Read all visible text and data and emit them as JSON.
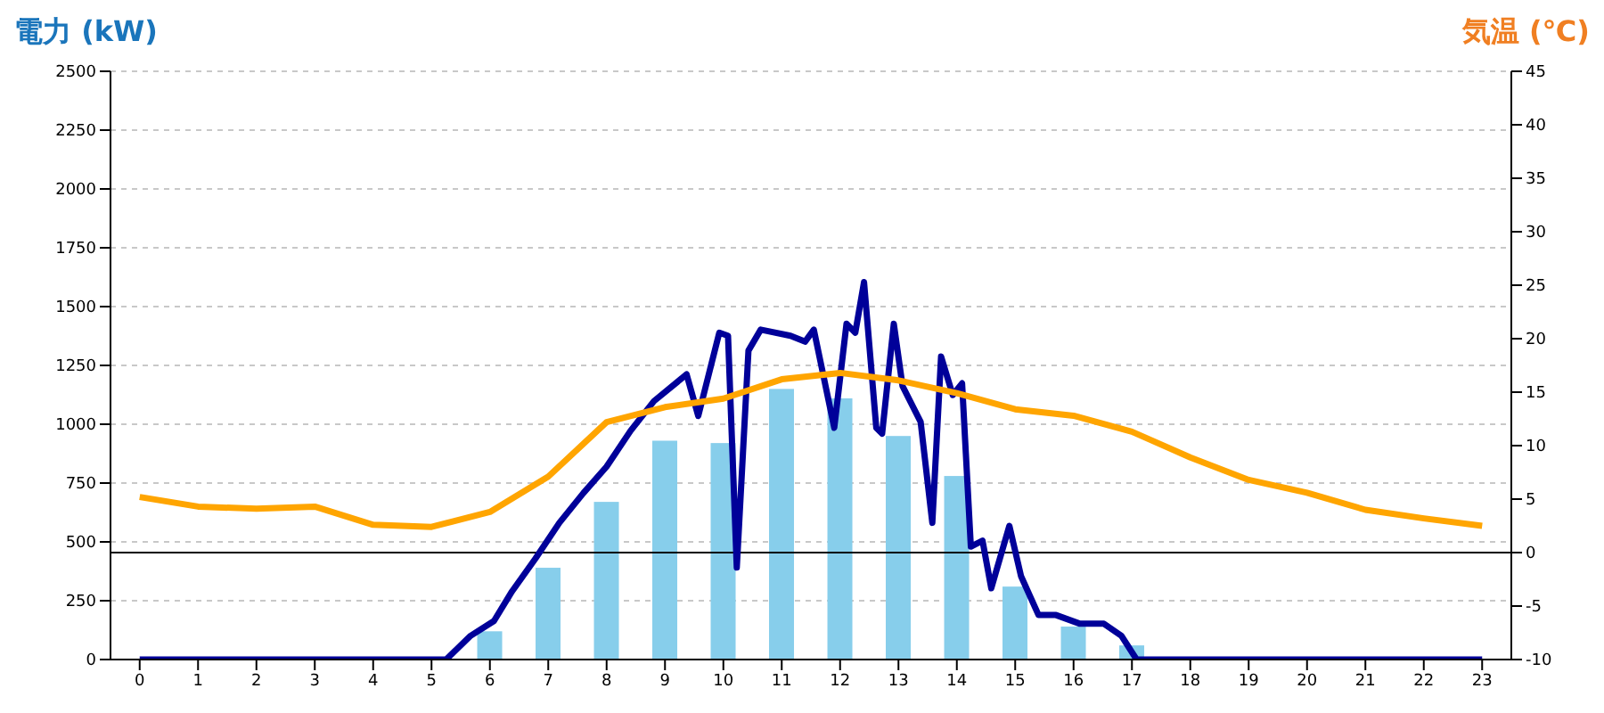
{
  "chart_data": {
    "type": "bar",
    "ylabel": "電力 (kW)",
    "y2label": "気温 (℃)",
    "xlim": [
      -0.5,
      23.5
    ],
    "xticks": [
      0,
      1,
      2,
      3,
      4,
      5,
      6,
      7,
      8,
      9,
      10,
      11,
      12,
      13,
      14,
      15,
      16,
      17,
      18,
      19,
      20,
      21,
      22,
      23
    ],
    "ylim": [
      0,
      2500
    ],
    "yticks": [
      0,
      250,
      500,
      750,
      1000,
      1250,
      1500,
      1750,
      2000,
      2250,
      2500
    ],
    "y2lim": [
      -10,
      45
    ],
    "y2ticks": [
      -10,
      -5,
      0,
      5,
      10,
      15,
      20,
      25,
      30,
      35,
      40,
      45
    ],
    "grid": "y",
    "legend": false,
    "ref_lines": [
      {
        "axis": "y2",
        "value": 0,
        "color": "#000000"
      }
    ],
    "series": [
      {
        "color": "#87ceeb",
        "x": [
          0,
          1,
          2,
          3,
          4,
          5,
          6,
          7,
          8,
          9,
          10,
          11,
          12,
          13,
          14,
          15,
          16,
          17,
          18,
          19,
          20,
          21,
          22,
          23
        ],
        "values": [
          0,
          0,
          0,
          0,
          0,
          0,
          120,
          390,
          670,
          930,
          920,
          1150,
          1110,
          950,
          780,
          310,
          140,
          60,
          0,
          0,
          0,
          0,
          0,
          0
        ]
      },
      {
        "type": "line",
        "color": "#000099",
        "x": [
          0,
          5.25,
          5.67,
          6.07,
          6.38,
          6.78,
          7.19,
          7.6,
          8.0,
          8.41,
          8.81,
          9.37,
          9.57,
          9.93,
          10.08,
          10.23,
          10.43,
          10.64,
          11.15,
          11.4,
          11.55,
          11.9,
          12.11,
          12.26,
          12.41,
          12.62,
          12.72,
          12.92,
          13.07,
          13.38,
          13.58,
          13.73,
          13.93,
          14.09,
          14.24,
          14.44,
          14.59,
          14.9,
          15.1,
          15.4,
          15.7,
          16.11,
          16.52,
          16.82,
          17.08,
          23
        ],
        "values": [
          0,
          0,
          101,
          164,
          290,
          429,
          581,
          707,
          820,
          972,
          1098,
          1212,
          1035,
          1389,
          1376,
          391,
          1313,
          1402,
          1376,
          1351,
          1402,
          985,
          1427,
          1389,
          1604,
          985,
          960,
          1427,
          1162,
          1010,
          581,
          1288,
          1124,
          1174,
          480,
          505,
          303,
          568,
          354,
          189,
          189,
          152,
          152,
          101,
          0,
          0
        ]
      },
      {
        "type": "line",
        "axis": "y2",
        "color": "#ffa500",
        "x": [
          0,
          1,
          2,
          3,
          4,
          5,
          6,
          7,
          8,
          9,
          10,
          11,
          12,
          13,
          14,
          15,
          16,
          17,
          18,
          19,
          20,
          21,
          22,
          23
        ],
        "values": [
          5.2,
          4.3,
          4.1,
          4.3,
          2.6,
          2.4,
          3.8,
          7.1,
          12.2,
          13.6,
          14.4,
          16.2,
          16.8,
          16.1,
          14.9,
          13.4,
          12.8,
          11.3,
          8.9,
          6.8,
          5.6,
          4.0,
          3.2,
          2.5
        ]
      }
    ]
  }
}
